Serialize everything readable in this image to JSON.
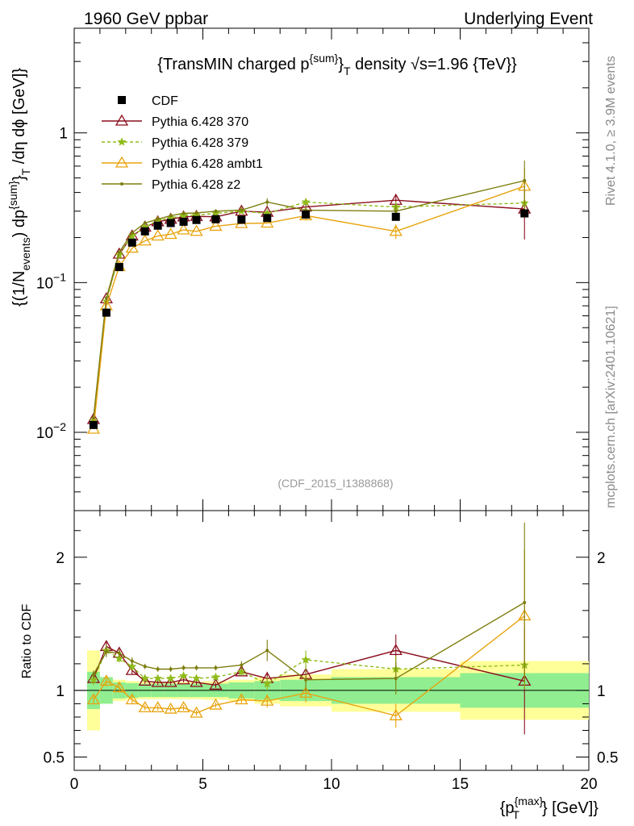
{
  "header": {
    "left": "1960 GeV ppbar",
    "right": "Underlying Event"
  },
  "side_labels": {
    "rivet": "Rivet 4.1.0, ≥ 3.9M events",
    "mcplots": "mcplots.cern.ch [arXiv:2401.10621]"
  },
  "chart_data": {
    "type": "line",
    "title": "{TransMIN charged p^{sum}_T density √s=1.96 {TeV}}",
    "title_parts": {
      "pre": "{TransMIN charged p",
      "sup": "{sum}",
      "brace": "}",
      "sub": "T",
      "post": " density √s=1.96 {TeV}}"
    },
    "analysis_id": "(CDF_2015_I1388868)",
    "xlabel": "{p_T^{max}} [GeV]",
    "xlabel_parts": {
      "pre": "{p",
      "sup": "{max}",
      "sub": "T",
      "post": "} [GeV]}"
    },
    "ylabel": "{(1/N_events) dp^{sum}_T /dη dϕ [GeV]}",
    "ylabel_parts": {
      "a": "{(1/N",
      "a_sub": "events",
      "b": ") dp",
      "b_sup": "{sum}",
      "c": "}",
      "c_sub": "T",
      "d": " /dη  dϕ [GeV]}"
    },
    "ratio_ylabel": "Ratio to CDF",
    "xlim": [
      0,
      20
    ],
    "ylim_log": [
      0.003,
      5
    ],
    "ratio_ylim": [
      0.4,
      2.35
    ],
    "x_tick_labels": [
      "0",
      "5",
      "10",
      "15",
      "20"
    ],
    "y_tick_labels": [
      {
        "value": 1,
        "base": "1",
        "exp": ""
      },
      {
        "value": 0.1,
        "base": "10",
        "exp": "−1"
      },
      {
        "value": 0.01,
        "base": "10",
        "exp": "−2"
      }
    ],
    "ratio_tick_labels": [
      {
        "value": 2,
        "label": "2"
      },
      {
        "value": 1,
        "label": "1"
      },
      {
        "value": 0.5,
        "label": "0.5"
      }
    ],
    "x": [
      0.75,
      1.25,
      1.75,
      2.25,
      2.75,
      3.25,
      3.75,
      4.25,
      4.75,
      5.5,
      6.5,
      7.5,
      9,
      12.5,
      17.5
    ],
    "x_bin_edges": [
      0.5,
      1,
      1.5,
      2,
      2.5,
      3,
      3.5,
      4,
      4.5,
      5,
      6,
      7,
      8,
      10,
      15,
      20
    ],
    "data": {
      "name": "CDF",
      "values": [
        0.0112,
        0.063,
        0.127,
        0.185,
        0.22,
        0.24,
        0.25,
        0.255,
        0.262,
        0.265,
        0.263,
        0.27,
        0.285,
        0.275,
        0.29
      ],
      "band_inner": [
        0.14,
        0.1,
        0.06,
        0.055,
        0.05,
        0.05,
        0.05,
        0.05,
        0.05,
        0.05,
        0.06,
        0.07,
        0.08,
        0.1,
        0.13
      ],
      "band_outer": [
        0.3,
        0.1,
        0.08,
        0.07,
        0.065,
        0.065,
        0.065,
        0.065,
        0.065,
        0.07,
        0.08,
        0.1,
        0.12,
        0.16,
        0.22
      ]
    },
    "series": [
      {
        "name": "Pythia 6.428 370",
        "color": "#8b0f1f",
        "marker": "triangle-open",
        "dash": "",
        "values": [
          0.0122,
          0.078,
          0.155,
          0.205,
          0.235,
          0.255,
          0.265,
          0.275,
          0.277,
          0.275,
          0.3,
          0.295,
          0.32,
          0.355,
          0.31
        ],
        "ratio": [
          1.09,
          1.33,
          1.28,
          1.15,
          1.07,
          1.06,
          1.06,
          1.08,
          1.06,
          1.04,
          1.14,
          1.09,
          1.12,
          1.3,
          1.07
        ],
        "ratio_err": [
          0.04,
          0.04,
          0.03,
          0.03,
          0.02,
          0.02,
          0.02,
          0.02,
          0.02,
          0.02,
          0.03,
          0.05,
          0.07,
          0.12,
          0.4
        ]
      },
      {
        "name": "Pythia 6.428 379",
        "color": "#8fbc1a",
        "marker": "star",
        "dash": "4,3",
        "values": [
          0.012,
          0.075,
          0.153,
          0.205,
          0.235,
          0.26,
          0.27,
          0.28,
          0.282,
          0.29,
          0.3,
          0.29,
          0.345,
          0.32,
          0.34
        ],
        "ratio": [
          1.08,
          1.3,
          1.24,
          1.18,
          1.09,
          1.09,
          1.09,
          1.11,
          1.09,
          1.1,
          1.14,
          1.05,
          1.23,
          1.16,
          1.19
        ],
        "ratio_err": [
          0.04,
          0.04,
          0.03,
          0.03,
          0.02,
          0.02,
          0.02,
          0.02,
          0.02,
          0.02,
          0.03,
          0.05,
          0.07,
          0.1,
          0.18
        ]
      },
      {
        "name": "Pythia 6.428 ambt1",
        "color": "#e8a30d",
        "marker": "triangle-open",
        "dash": "",
        "values": [
          0.0105,
          0.07,
          0.128,
          0.17,
          0.19,
          0.205,
          0.21,
          0.225,
          0.22,
          0.238,
          0.248,
          0.25,
          0.28,
          0.22,
          0.44
        ],
        "ratio": [
          0.93,
          1.07,
          1.02,
          0.93,
          0.87,
          0.87,
          0.86,
          0.87,
          0.83,
          0.89,
          0.93,
          0.92,
          0.98,
          0.81,
          1.56
        ],
        "ratio_err": [
          0.03,
          0.04,
          0.03,
          0.03,
          0.02,
          0.02,
          0.02,
          0.02,
          0.02,
          0.02,
          0.03,
          0.05,
          0.07,
          0.09,
          0.5
        ]
      },
      {
        "name": "Pythia 6.428 z2",
        "color": "#7e7e0e",
        "marker": "dot",
        "dash": "",
        "values": [
          0.0125,
          0.079,
          0.16,
          0.215,
          0.25,
          0.265,
          0.28,
          0.29,
          0.292,
          0.3,
          0.305,
          0.345,
          0.305,
          0.3,
          0.48
        ],
        "ratio": [
          1.12,
          1.29,
          1.28,
          1.22,
          1.18,
          1.16,
          1.16,
          1.17,
          1.17,
          1.17,
          1.19,
          1.3,
          1.08,
          1.09,
          1.66
        ],
        "ratio_err": [
          0.03,
          0.04,
          0.03,
          0.03,
          0.02,
          0.02,
          0.02,
          0.02,
          0.02,
          0.02,
          0.03,
          0.08,
          0.08,
          0.12,
          0.6
        ]
      }
    ],
    "legend": {
      "placement": "top-left",
      "entries": [
        "CDF",
        "Pythia 6.428 370",
        "Pythia 6.428 379",
        "Pythia 6.428 ambt1",
        "Pythia 6.428 z2"
      ]
    },
    "colors": {
      "band_inner": "#90ee90",
      "band_outer": "#ffff99",
      "data": "#000000",
      "ratio_reference": "#000000"
    }
  }
}
